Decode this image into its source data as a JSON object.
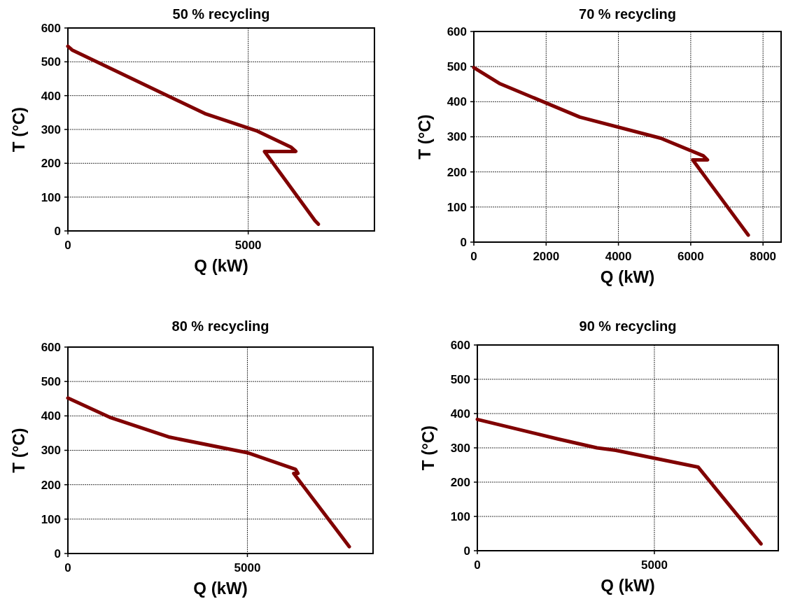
{
  "chart_data": [
    {
      "type": "line",
      "title": "50 % recycling",
      "xlabel": "Q (kW)",
      "ylabel": "T (°C)",
      "color": "#800000",
      "marker": "none",
      "grid": true,
      "x": [
        0,
        118,
        3800,
        5257,
        6194,
        6319,
        5451,
        6854,
        6944
      ],
      "values": [
        546,
        535,
        347,
        295,
        247,
        235,
        235,
        30,
        20
      ],
      "xlim": [
        0,
        8500
      ],
      "xticks": [
        0,
        5000
      ],
      "ylim": [
        0,
        600
      ],
      "yticks": [
        0,
        100,
        200,
        300,
        400,
        500,
        600
      ]
    },
    {
      "type": "line",
      "title": "70 % recycling",
      "xlabel": "Q (kW)",
      "ylabel": "T (°C)",
      "color": "#800000",
      "marker": "none",
      "grid": true,
      "x": [
        0,
        706,
        2934,
        5170,
        6346,
        6463,
        6055,
        7592
      ],
      "values": [
        497,
        452,
        356,
        296,
        246,
        234,
        234,
        20
      ],
      "xlim": [
        0,
        8500
      ],
      "xticks": [
        0,
        2000,
        4000,
        6000,
        8000
      ],
      "ylim": [
        0,
        600
      ],
      "yticks": [
        0,
        100,
        200,
        300,
        400,
        500,
        600
      ]
    },
    {
      "type": "line",
      "title": "80 % recycling",
      "xlabel": "Q (kW)",
      "ylabel": "T (°C)",
      "color": "#800000",
      "marker": "none",
      "grid": true,
      "x": [
        0,
        1165,
        2838,
        5000,
        6339,
        6409,
        6290,
        7838
      ],
      "values": [
        452,
        396,
        338,
        293,
        245,
        233,
        233,
        20
      ],
      "xlim": [
        0,
        8500
      ],
      "xticks": [
        0,
        5000
      ],
      "ylim": [
        0,
        600
      ],
      "yticks": [
        0,
        100,
        200,
        300,
        400,
        500,
        600
      ]
    },
    {
      "type": "line",
      "title": "90 % recycling",
      "xlabel": "Q (kW)",
      "ylabel": "T (°C)",
      "color": "#800000",
      "marker": "none",
      "grid": true,
      "x": [
        0,
        2271,
        3378,
        3907,
        6234,
        8011
      ],
      "values": [
        383,
        326,
        300,
        293,
        244,
        20
      ],
      "xlim": [
        0,
        8500
      ],
      "xticks": [
        0,
        5000
      ],
      "ylim": [
        0,
        600
      ],
      "yticks": [
        0,
        100,
        200,
        300,
        400,
        500,
        600
      ]
    }
  ]
}
